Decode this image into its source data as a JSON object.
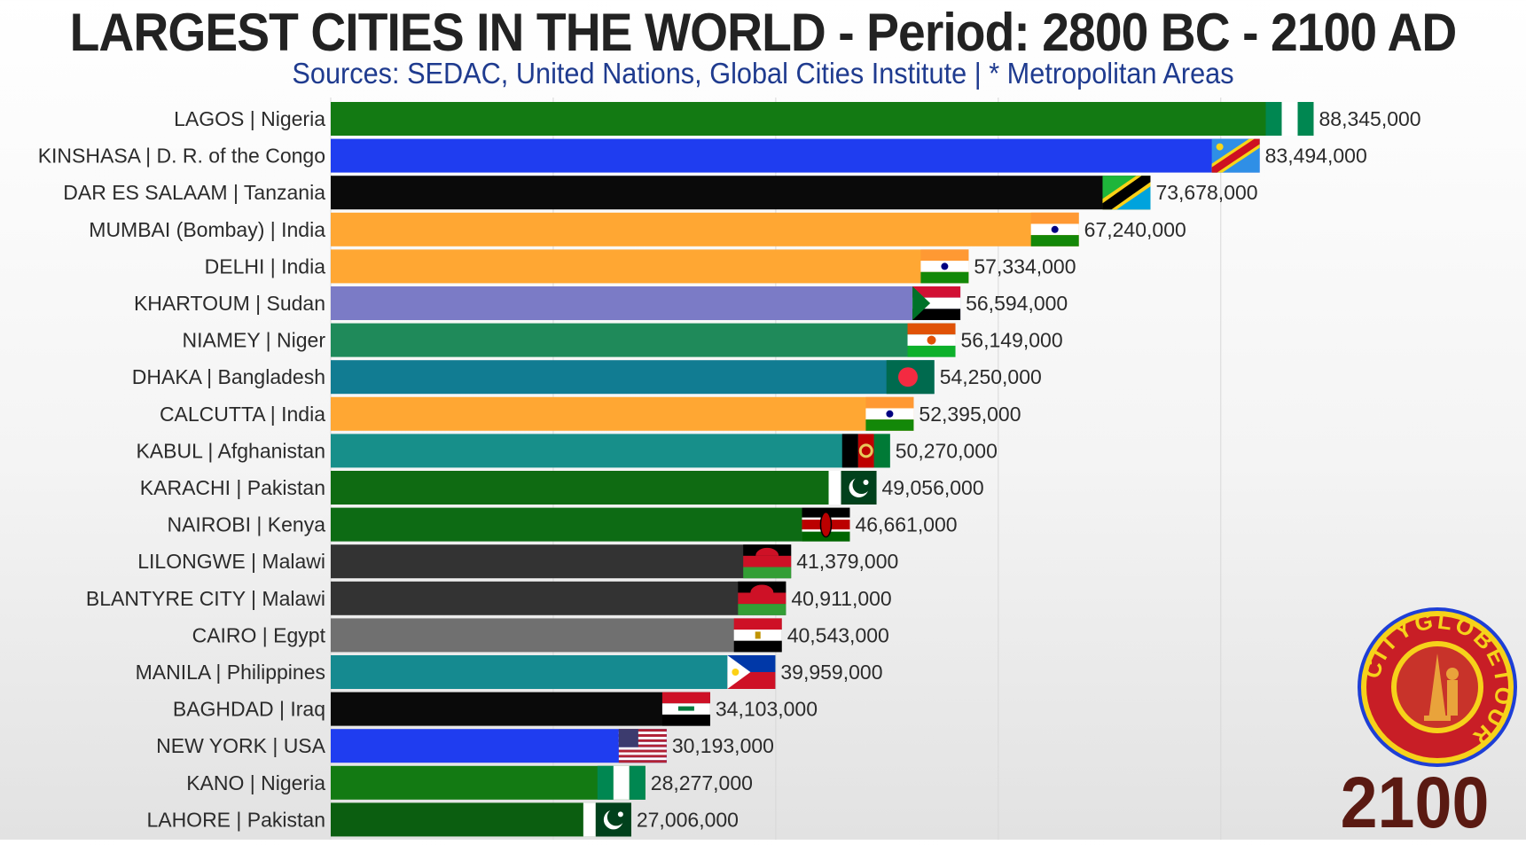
{
  "header": {
    "title": "LARGEST CITIES IN THE WORLD - Period: 2800 BC - 2100 AD",
    "subtitle": "Sources: SEDAC, United Nations, Global Cities Institute | * Metropolitan Areas"
  },
  "year_label": "2100",
  "logo": {
    "text": "CITYGLOBETOUR"
  },
  "chart_data": {
    "type": "bar",
    "orientation": "horizontal",
    "xlim": [
      0,
      95000000
    ],
    "grid": true,
    "categories": [
      "LAGOS | Nigeria",
      "KINSHASA | D. R. of the Congo",
      "DAR ES SALAAM | Tanzania",
      "MUMBAI (Bombay) | India",
      "DELHI | India",
      "KHARTOUM | Sudan",
      "NIAMEY | Niger",
      "DHAKA | Bangladesh",
      "CALCUTTA | India",
      "KABUL | Afghanistan",
      "KARACHI | Pakistan",
      "NAIROBI | Kenya",
      "LILONGWE | Malawi",
      "BLANTYRE CITY | Malawi",
      "CAIRO | Egypt",
      "MANILA | Philippines",
      "BAGHDAD | Iraq",
      "NEW YORK | USA",
      "KANO | Nigeria",
      "LAHORE | Pakistan"
    ],
    "values": [
      88345000,
      83494000,
      73678000,
      67240000,
      57334000,
      56594000,
      56149000,
      54250000,
      52395000,
      50270000,
      49056000,
      46661000,
      41379000,
      40911000,
      40543000,
      39959000,
      34103000,
      30193000,
      28277000,
      27006000
    ],
    "value_labels": [
      "88,345,000",
      "83,494,000",
      "73,678,000",
      "67,240,000",
      "57,334,000",
      "56,594,000",
      "56,149,000",
      "54,250,000",
      "52,395,000",
      "50,270,000",
      "49,056,000",
      "46,661,000",
      "41,379,000",
      "40,911,000",
      "40,543,000",
      "39,959,000",
      "34,103,000",
      "30,193,000",
      "28,277,000",
      "27,006,000"
    ],
    "colors": [
      "#137a13",
      "#1f3df0",
      "#0a0a0a",
      "#ffa733",
      "#ffa733",
      "#7b7bc6",
      "#1f8a5a",
      "#117c92",
      "#ffa733",
      "#178f8a",
      "#0f6b12",
      "#0d6b14",
      "#333333",
      "#333333",
      "#707070",
      "#158a90",
      "#0a0a0a",
      "#1f3df0",
      "#137a13",
      "#0b5e10"
    ],
    "flags": [
      "nigeria",
      "drc",
      "tanzania",
      "india",
      "india",
      "sudan",
      "niger",
      "bangladesh",
      "india",
      "afghanistan",
      "pakistan",
      "kenya",
      "malawi",
      "malawi",
      "egypt",
      "philippines",
      "iraq",
      "usa",
      "nigeria",
      "pakistan"
    ]
  }
}
